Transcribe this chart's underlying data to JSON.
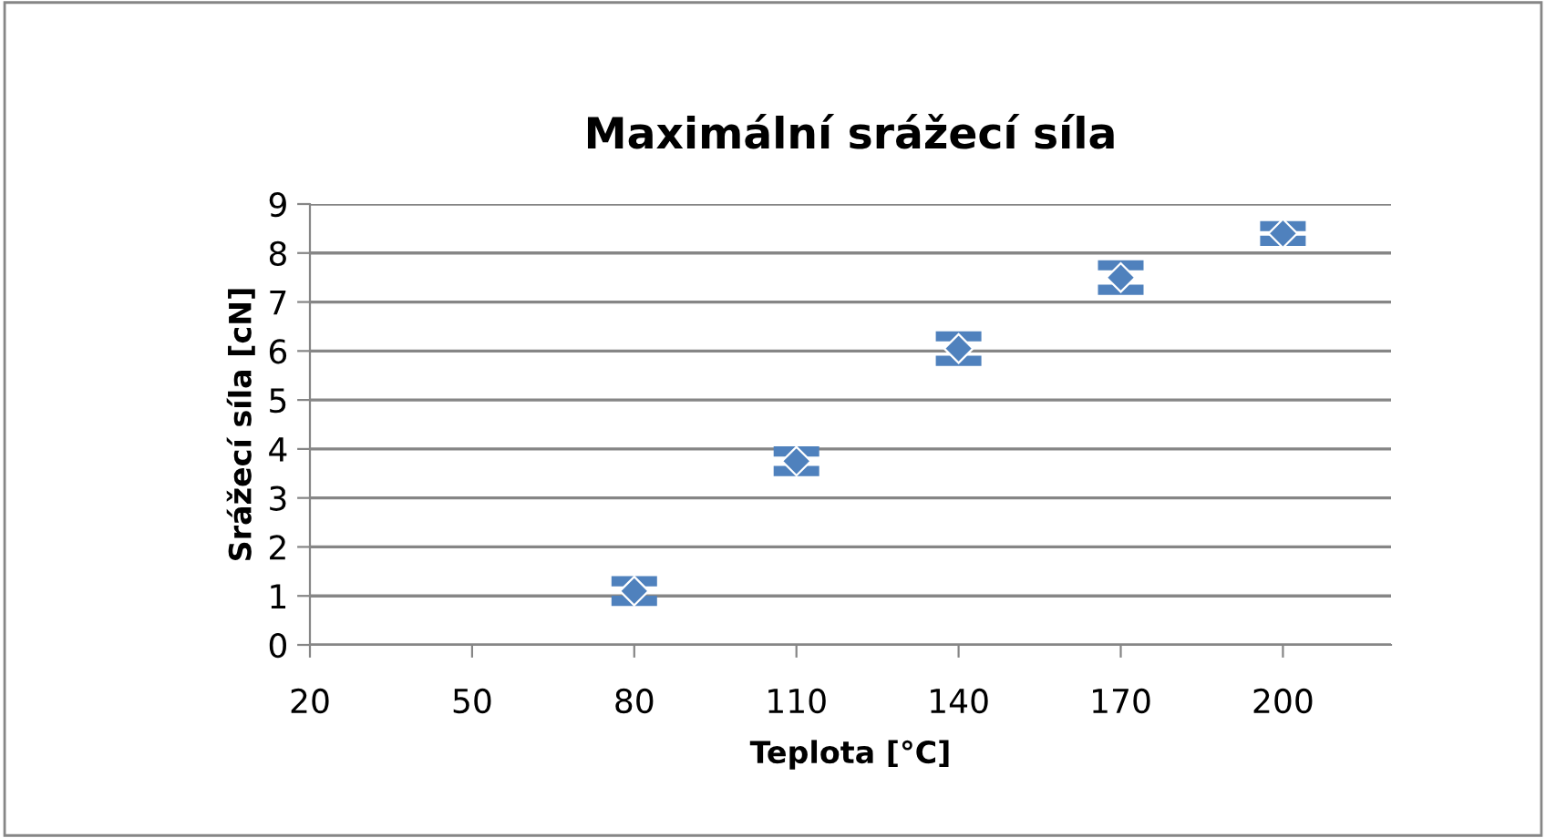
{
  "chart_data": {
    "type": "scatter",
    "title": "Maximální srážecí síla",
    "xlabel": "Teplota [°C]",
    "ylabel": "Srážecí síla [cN]",
    "x": [
      80,
      110,
      140,
      170,
      200
    ],
    "series": [
      {
        "color": "#4f81bd",
        "values": [
          1.1,
          3.75,
          6.05,
          7.5,
          8.4
        ],
        "errors": [
          0.2,
          0.2,
          0.25,
          0.25,
          0.15
        ]
      }
    ],
    "xlim": [
      20,
      220
    ],
    "xticks": [
      20,
      50,
      80,
      110,
      140,
      170,
      200
    ],
    "ylim": [
      0,
      9
    ],
    "yticks": [
      0,
      1,
      2,
      3,
      4,
      5,
      6,
      7,
      8,
      9
    ],
    "grid": "y",
    "marker": "diamond"
  }
}
